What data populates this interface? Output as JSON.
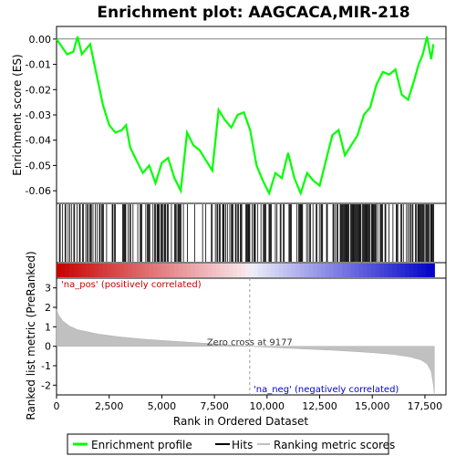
{
  "chart_data": {
    "type": "line",
    "title": "Enrichment plot: AAGCACA,MIR-218",
    "xlabel": "Rank in Ordered Dataset",
    "xlim": [
      0,
      18500
    ],
    "xticks": [
      0,
      2500,
      5000,
      7500,
      10000,
      12500,
      15000,
      17500
    ],
    "xtick_labels": [
      "0",
      "2,500",
      "5,000",
      "7,500",
      "10,000",
      "12,500",
      "15,000",
      "17,500"
    ],
    "top_panel": {
      "ylabel": "Enrichment score (ES)",
      "ylim": [
        -0.065,
        0.005
      ],
      "yticks": [
        0.0,
        -0.01,
        -0.02,
        -0.03,
        -0.04,
        -0.05,
        -0.06
      ],
      "ytick_labels": [
        "0.00",
        "-0.01",
        "-0.02",
        "-0.03",
        "-0.04",
        "-0.05",
        "-0.06"
      ],
      "series_name": "Enrichment profile",
      "color": "#00ff00",
      "points": [
        [
          0,
          0.0
        ],
        [
          250,
          -0.003
        ],
        [
          500,
          -0.006
        ],
        [
          800,
          -0.005
        ],
        [
          1000,
          0.001
        ],
        [
          1200,
          -0.006
        ],
        [
          1400,
          -0.004
        ],
        [
          1600,
          -0.002
        ],
        [
          1800,
          -0.01
        ],
        [
          2000,
          -0.018
        ],
        [
          2200,
          -0.026
        ],
        [
          2500,
          -0.034
        ],
        [
          2800,
          -0.037
        ],
        [
          3100,
          -0.036
        ],
        [
          3300,
          -0.034
        ],
        [
          3500,
          -0.043
        ],
        [
          3800,
          -0.048
        ],
        [
          4100,
          -0.053
        ],
        [
          4400,
          -0.05
        ],
        [
          4700,
          -0.057
        ],
        [
          5000,
          -0.049
        ],
        [
          5300,
          -0.047
        ],
        [
          5600,
          -0.055
        ],
        [
          5900,
          -0.06
        ],
        [
          6200,
          -0.037
        ],
        [
          6500,
          -0.042
        ],
        [
          6800,
          -0.044
        ],
        [
          7100,
          -0.048
        ],
        [
          7400,
          -0.052
        ],
        [
          7700,
          -0.028
        ],
        [
          8000,
          -0.032
        ],
        [
          8300,
          -0.035
        ],
        [
          8600,
          -0.03
        ],
        [
          8900,
          -0.029
        ],
        [
          9200,
          -0.036
        ],
        [
          9500,
          -0.05
        ],
        [
          9800,
          -0.056
        ],
        [
          10100,
          -0.061
        ],
        [
          10400,
          -0.053
        ],
        [
          10700,
          -0.055
        ],
        [
          11000,
          -0.045
        ],
        [
          11300,
          -0.055
        ],
        [
          11600,
          -0.061
        ],
        [
          11900,
          -0.053
        ],
        [
          12200,
          -0.056
        ],
        [
          12500,
          -0.058
        ],
        [
          12800,
          -0.048
        ],
        [
          13100,
          -0.038
        ],
        [
          13400,
          -0.036
        ],
        [
          13700,
          -0.046
        ],
        [
          14000,
          -0.042
        ],
        [
          14300,
          -0.038
        ],
        [
          14600,
          -0.03
        ],
        [
          14900,
          -0.027
        ],
        [
          15200,
          -0.018
        ],
        [
          15500,
          -0.013
        ],
        [
          15800,
          -0.014
        ],
        [
          16100,
          -0.012
        ],
        [
          16400,
          -0.022
        ],
        [
          16700,
          -0.024
        ],
        [
          17000,
          -0.016
        ],
        [
          17200,
          -0.01
        ],
        [
          17400,
          -0.006
        ],
        [
          17600,
          0.001
        ],
        [
          17800,
          -0.008
        ],
        [
          17900,
          -0.002
        ]
      ]
    },
    "hits_panel": {
      "series_name": "Hits",
      "color": "#000000",
      "positive_label": "'na_pos' (positively correlated)",
      "negative_label": "'na_neg' (negatively correlated)",
      "positive_color": "#cc0000",
      "negative_color": "#0000cc"
    },
    "bottom_panel": {
      "ylabel": "Ranked list metric (PreRanked)",
      "ylim": [
        -2.5,
        3.5
      ],
      "yticks": [
        3,
        2,
        1,
        0,
        -1,
        -2
      ],
      "ytick_labels": [
        "3",
        "2",
        "1",
        "0",
        "-1",
        "-2"
      ],
      "series_name": "Ranking metric scores",
      "color": "#c0c0c0",
      "zero_cross_rank": 9177,
      "zero_cross_label": "Zero cross at 9177",
      "points": [
        [
          0,
          1.9
        ],
        [
          100,
          1.6
        ],
        [
          300,
          1.3
        ],
        [
          600,
          1.05
        ],
        [
          1000,
          0.85
        ],
        [
          2000,
          0.62
        ],
        [
          3000,
          0.48
        ],
        [
          4000,
          0.38
        ],
        [
          5000,
          0.3
        ],
        [
          6000,
          0.23
        ],
        [
          7000,
          0.16
        ],
        [
          8000,
          0.09
        ],
        [
          9177,
          0.0
        ],
        [
          10000,
          -0.05
        ],
        [
          11000,
          -0.1
        ],
        [
          12000,
          -0.15
        ],
        [
          13000,
          -0.2
        ],
        [
          14000,
          -0.26
        ],
        [
          15000,
          -0.33
        ],
        [
          16000,
          -0.42
        ],
        [
          16800,
          -0.55
        ],
        [
          17300,
          -0.7
        ],
        [
          17600,
          -0.9
        ],
        [
          17800,
          -1.3
        ],
        [
          17900,
          -2.0
        ],
        [
          17950,
          -2.5
        ]
      ]
    },
    "legend": {
      "placement": "bottom",
      "items": [
        "Enrichment profile",
        "Hits",
        "Ranking metric scores"
      ]
    }
  }
}
